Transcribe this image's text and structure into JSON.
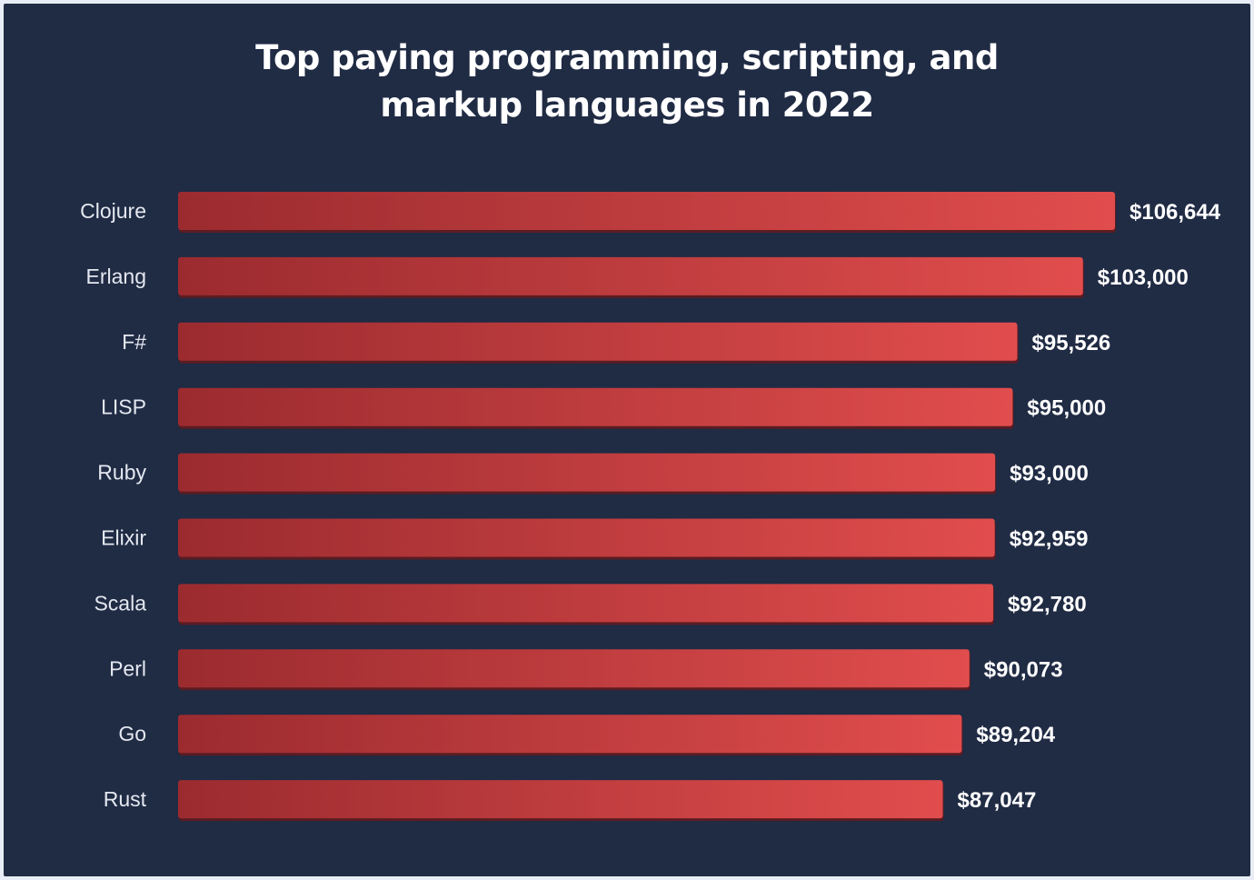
{
  "page": {
    "title_line1": "Top paying programming, scripting, and",
    "title_line2": "markup languages in 2022"
  },
  "colors": {
    "background": "#202b44",
    "page_border": "#e9eef6",
    "bar_dark": "#9b2b2f",
    "bar_light": "#e14d4d",
    "bar_shadow": "#5a1c22",
    "text": "#ffffff"
  },
  "chart_data": {
    "type": "bar",
    "orientation": "horizontal",
    "title": "Top paying programming, scripting, and markup languages in 2022",
    "categories": [
      "Clojure",
      "Erlang",
      "F#",
      "LISP",
      "Ruby",
      "Elixir",
      "Scala",
      "Perl",
      "Go",
      "Rust"
    ],
    "values": [
      106644,
      103000,
      95526,
      95000,
      93000,
      92959,
      92780,
      90073,
      89204,
      87047
    ],
    "value_labels": [
      "$106,644",
      "$103,000",
      "$95,526",
      "$95,000",
      "$93,000",
      "$92,959",
      "$92,780",
      "$90,073",
      "$89,204",
      "$87,047"
    ],
    "xlim": [
      0,
      106644
    ],
    "grid": false,
    "legend": "none"
  }
}
